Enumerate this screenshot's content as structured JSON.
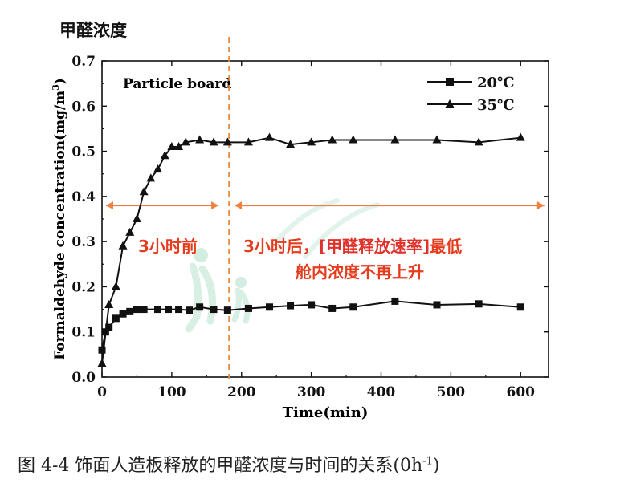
{
  "header": {
    "title": "甲醛浓度"
  },
  "caption": {
    "prefix": "图 4-4  饰面人造板释放的甲醛浓度与时间的关系(0h",
    "sup": "-1",
    "suffix": ")"
  },
  "colors": {
    "axis": "#111111",
    "series": "#111111",
    "annotation": "#e53c1e",
    "bracket": "#e0312a",
    "divider": "#e8893a",
    "arrow": "#f08040",
    "watermark": "#a8dcc2"
  },
  "chart_data": {
    "type": "line",
    "panel_label": "Particle board",
    "xlabel": "Time(min)",
    "ylabel": "Formaldehyde concentration(mg/m",
    "ylabel_sup": "3",
    "ylabel_close": ")",
    "xlim": [
      0,
      640
    ],
    "ylim": [
      0,
      0.7
    ],
    "xticks": [
      0,
      100,
      200,
      300,
      400,
      500,
      600
    ],
    "yticks": [
      0.0,
      0.1,
      0.2,
      0.3,
      0.4,
      0.5,
      0.6,
      0.7
    ],
    "legend_position": "top-right",
    "series": [
      {
        "name": "20℃",
        "marker": "square",
        "x": [
          0,
          5,
          10,
          20,
          30,
          40,
          50,
          60,
          80,
          95,
          110,
          125,
          140,
          160,
          180,
          210,
          240,
          270,
          300,
          330,
          360,
          420,
          480,
          540,
          600
        ],
        "y": [
          0.06,
          0.1,
          0.11,
          0.13,
          0.14,
          0.145,
          0.15,
          0.15,
          0.15,
          0.15,
          0.15,
          0.148,
          0.155,
          0.15,
          0.148,
          0.152,
          0.155,
          0.158,
          0.16,
          0.152,
          0.155,
          0.168,
          0.16,
          0.162,
          0.155
        ]
      },
      {
        "name": "35℃",
        "marker": "triangle",
        "x": [
          0,
          10,
          20,
          30,
          40,
          50,
          60,
          70,
          80,
          90,
          100,
          110,
          120,
          140,
          160,
          180,
          210,
          240,
          270,
          300,
          330,
          360,
          420,
          480,
          540,
          600
        ],
        "y": [
          0.03,
          0.16,
          0.2,
          0.29,
          0.32,
          0.35,
          0.41,
          0.44,
          0.46,
          0.49,
          0.51,
          0.51,
          0.52,
          0.525,
          0.52,
          0.52,
          0.52,
          0.53,
          0.515,
          0.52,
          0.525,
          0.525,
          0.525,
          0.525,
          0.52,
          0.53
        ]
      }
    ],
    "divider_x": 180,
    "annotations": {
      "left": "3小时前",
      "right_part1": "3小时后，",
      "right_bracket": "[甲醛释放速率]",
      "right_part2": "最低",
      "right_line2": "舱内浓度不再上升"
    }
  }
}
